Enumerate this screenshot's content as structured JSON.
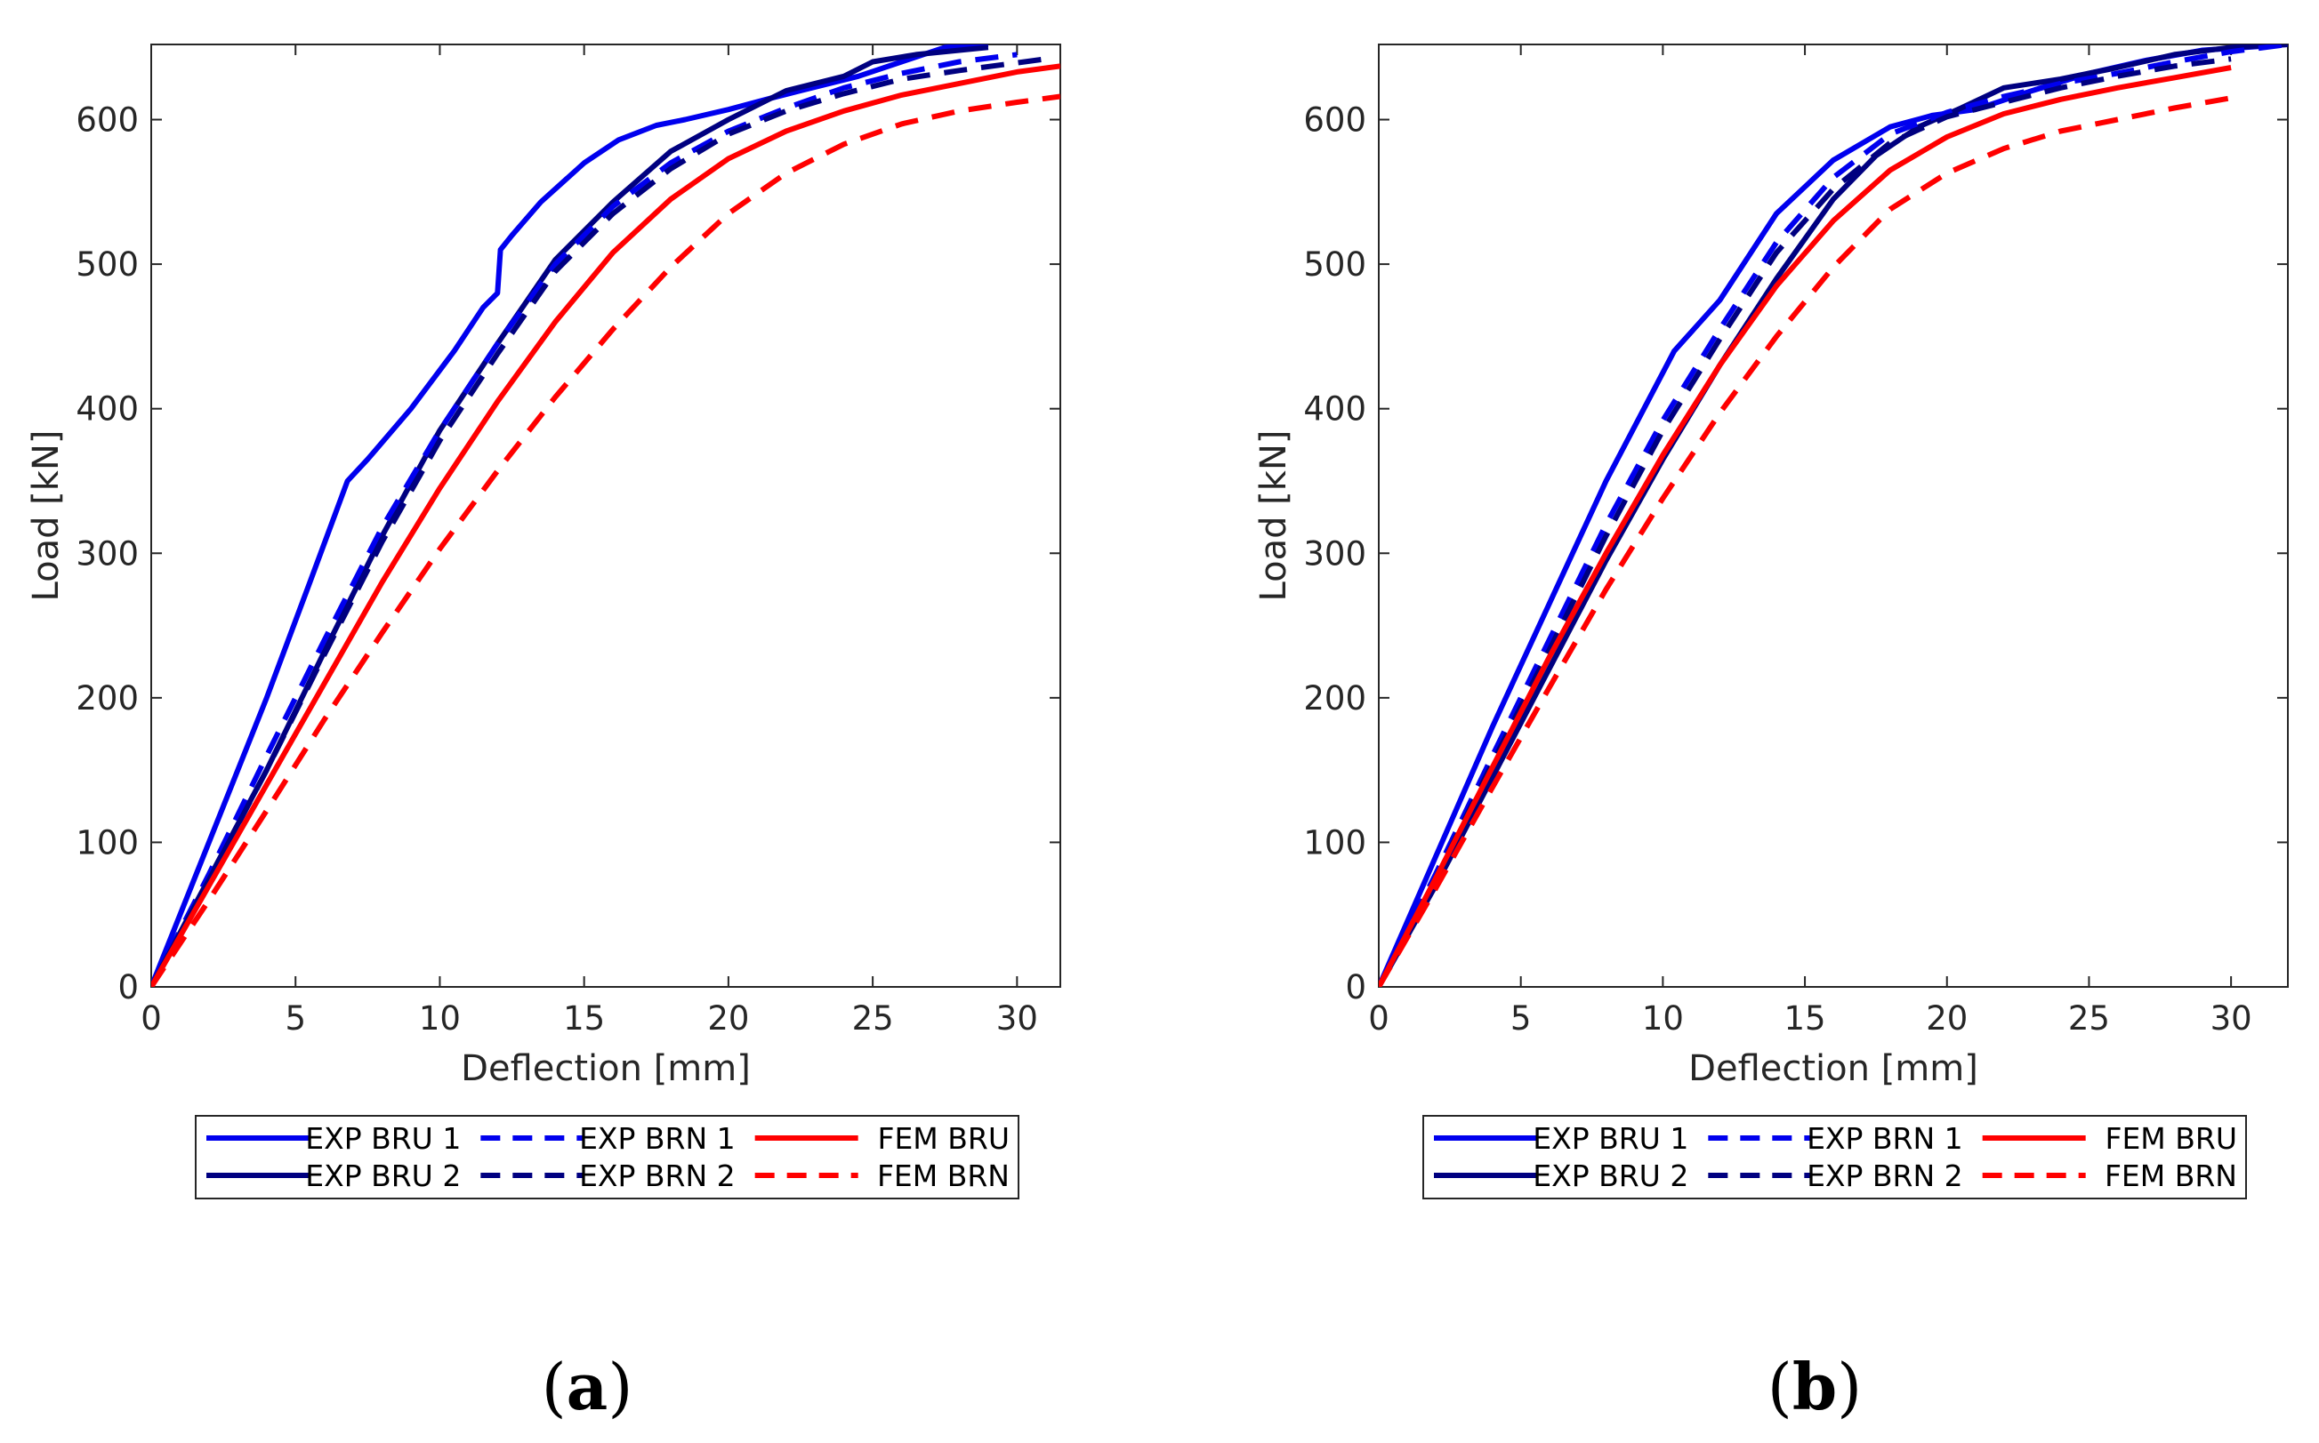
{
  "colors": {
    "exp_bru_1": "#0000ee",
    "exp_bru_2": "#000080",
    "exp_brn_1": "#0000ee",
    "exp_brn_2": "#000080",
    "fem_bru": "#ff0000",
    "fem_brn": "#ff0000",
    "axis": "#262626"
  },
  "chart_data": [
    {
      "type": "line",
      "panel_label": "a",
      "xlabel": "Deflection [mm]",
      "ylabel": "Load [kN]",
      "xlim": [
        0,
        31.5
      ],
      "ylim": [
        0,
        652
      ],
      "xticks": [
        0,
        5,
        10,
        15,
        20,
        25,
        30
      ],
      "yticks": [
        0,
        100,
        200,
        300,
        400,
        500,
        600
      ],
      "grid": false,
      "legend_position": "bottom",
      "series": [
        {
          "name": "EXP BRU 1",
          "key": "exp_bru_1",
          "style": "solid",
          "x": [
            0,
            2,
            4,
            5.5,
            6.8,
            7.5,
            9,
            10.5,
            11.5,
            12,
            12.1,
            12.5,
            13.5,
            15,
            16.2,
            17.5,
            18.5,
            20,
            21.5,
            22.5,
            24.5,
            26,
            27.5,
            29
          ],
          "y": [
            0,
            100,
            200,
            280,
            350,
            365,
            400,
            440,
            470,
            480,
            510,
            520,
            543,
            570,
            586,
            596,
            600,
            607,
            615,
            620,
            630,
            640,
            650,
            652
          ]
        },
        {
          "name": "EXP BRU 2",
          "key": "exp_bru_2",
          "style": "solid",
          "x": [
            0,
            2,
            4,
            6,
            8,
            10,
            12,
            14,
            16,
            18,
            20,
            22,
            24,
            25,
            26.5,
            28,
            29
          ],
          "y": [
            0,
            75,
            150,
            232,
            312,
            385,
            445,
            503,
            543,
            578,
            600,
            620,
            630,
            640,
            645,
            648,
            650
          ]
        },
        {
          "name": "EXP BRN 1",
          "key": "exp_brn_1",
          "style": "dashed",
          "x": [
            0,
            2,
            4,
            6,
            8,
            10,
            12,
            14,
            16,
            18,
            20,
            22,
            24,
            26,
            28,
            30
          ],
          "y": [
            0,
            78,
            160,
            240,
            318,
            385,
            445,
            500,
            540,
            570,
            592,
            608,
            622,
            632,
            640,
            645
          ]
        },
        {
          "name": "EXP BRN 2",
          "key": "exp_brn_2",
          "style": "dashed",
          "x": [
            0,
            2,
            4,
            6,
            8,
            10,
            12,
            14,
            16,
            18,
            20,
            22,
            24,
            26,
            28,
            31
          ],
          "y": [
            0,
            74,
            150,
            230,
            308,
            378,
            438,
            495,
            535,
            566,
            590,
            606,
            618,
            628,
            634,
            642
          ]
        },
        {
          "name": "FEM BRU",
          "key": "fem_bru",
          "style": "solid",
          "x": [
            0,
            2,
            4,
            6,
            8,
            10,
            12,
            14,
            16,
            18,
            20,
            22,
            24,
            26,
            28,
            30,
            31.5
          ],
          "y": [
            0,
            70,
            140,
            210,
            280,
            345,
            405,
            460,
            508,
            545,
            573,
            592,
            606,
            617,
            625,
            633,
            637
          ]
        },
        {
          "name": "FEM BRN",
          "key": "fem_brn",
          "style": "dashed",
          "x": [
            0,
            2,
            4,
            6,
            8,
            10,
            12,
            14,
            16,
            18,
            20,
            22,
            24,
            26,
            28,
            30,
            31.5
          ],
          "y": [
            0,
            60,
            122,
            185,
            245,
            303,
            357,
            408,
            455,
            498,
            535,
            563,
            583,
            597,
            606,
            612,
            616
          ]
        }
      ]
    },
    {
      "type": "line",
      "panel_label": "b",
      "xlabel": "Deflection [mm]",
      "ylabel": "Load [kN]",
      "xlim": [
        0,
        32
      ],
      "ylim": [
        0,
        652
      ],
      "xticks": [
        0,
        5,
        10,
        15,
        20,
        25,
        30
      ],
      "yticks": [
        0,
        100,
        200,
        300,
        400,
        500,
        600
      ],
      "grid": false,
      "legend_position": "bottom",
      "series": [
        {
          "name": "EXP BRU 1",
          "key": "exp_bru_1",
          "style": "solid",
          "x": [
            0,
            2,
            4,
            6,
            8,
            10.4,
            12,
            14,
            16,
            18,
            19.5,
            21,
            23,
            25,
            27,
            29,
            32
          ],
          "y": [
            0,
            90,
            180,
            265,
            350,
            440,
            475,
            535,
            572,
            595,
            603,
            607,
            620,
            632,
            641,
            648,
            652
          ]
        },
        {
          "name": "EXP BRU 2",
          "key": "exp_bru_2",
          "style": "solid",
          "x": [
            0,
            2,
            4,
            6,
            8,
            10,
            12,
            14,
            16,
            17.5,
            19,
            20.5,
            22,
            24,
            26,
            28,
            30,
            32
          ],
          "y": [
            0,
            70,
            145,
            220,
            295,
            365,
            430,
            490,
            545,
            575,
            595,
            608,
            622,
            628,
            636,
            645,
            650,
            652
          ]
        },
        {
          "name": "EXP BRN 1",
          "key": "exp_brn_1",
          "style": "dashed",
          "x": [
            0,
            2,
            4,
            6,
            8,
            10,
            12,
            14,
            16,
            18,
            20,
            22,
            24,
            26,
            28,
            30,
            32
          ],
          "y": [
            0,
            78,
            160,
            240,
            320,
            392,
            455,
            515,
            560,
            590,
            605,
            616,
            625,
            632,
            640,
            647,
            652
          ]
        },
        {
          "name": "EXP BRN 2",
          "key": "exp_brn_2",
          "style": "dashed",
          "x": [
            0,
            2,
            4,
            6,
            8,
            10,
            12,
            14,
            16,
            18,
            20,
            22,
            24,
            26,
            28,
            30
          ],
          "y": [
            0,
            75,
            155,
            233,
            312,
            385,
            448,
            508,
            552,
            584,
            602,
            612,
            622,
            630,
            637,
            642
          ]
        },
        {
          "name": "FEM BRU",
          "key": "fem_bru",
          "style": "solid",
          "x": [
            0,
            2,
            4,
            6,
            8,
            10,
            12,
            14,
            16,
            18,
            20,
            22,
            24,
            26,
            28,
            30
          ],
          "y": [
            0,
            75,
            152,
            228,
            300,
            368,
            430,
            485,
            530,
            565,
            588,
            604,
            614,
            622,
            629,
            636
          ]
        },
        {
          "name": "FEM BRN",
          "key": "fem_brn",
          "style": "dashed",
          "x": [
            0,
            2,
            4,
            6,
            8,
            10,
            12,
            14,
            16,
            18,
            20,
            22,
            24,
            26,
            28,
            30
          ],
          "y": [
            0,
            68,
            138,
            207,
            275,
            338,
            397,
            450,
            498,
            538,
            563,
            580,
            592,
            600,
            608,
            615
          ]
        }
      ]
    }
  ]
}
